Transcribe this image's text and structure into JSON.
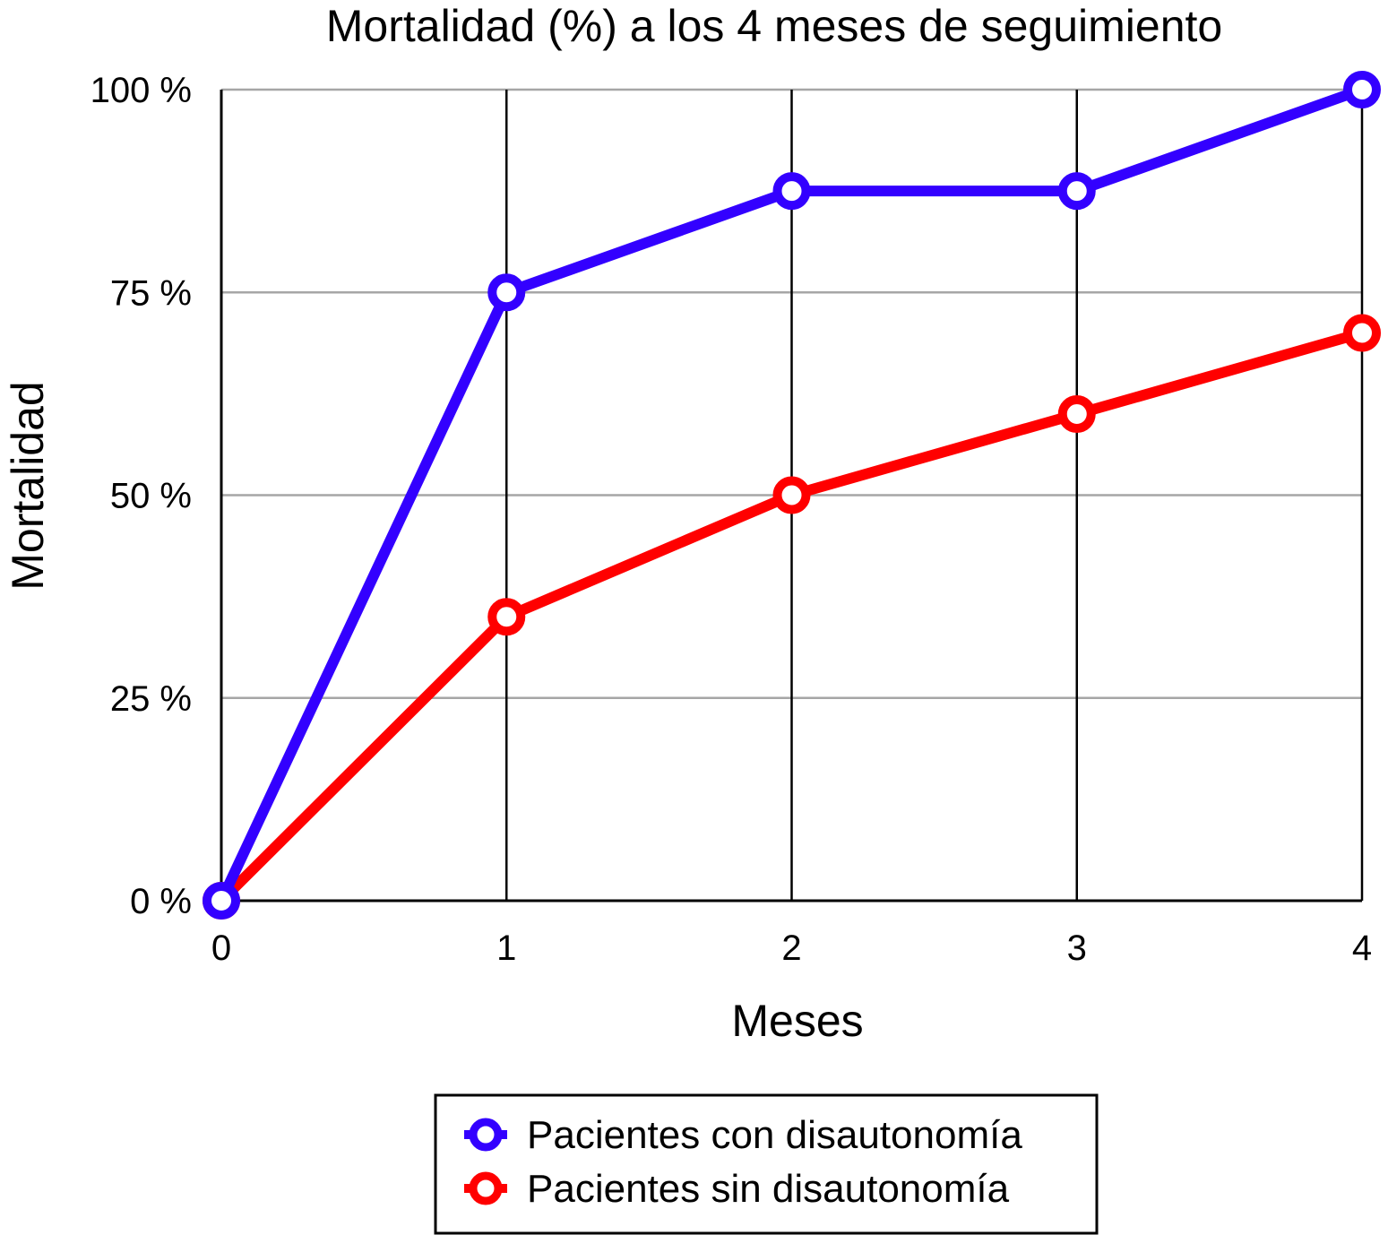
{
  "chart_data": {
    "type": "line",
    "title": "Mortalidad (%) a los 4 meses de seguimiento",
    "xlabel": "Meses",
    "ylabel": "Mortalidad",
    "x": [
      0,
      1,
      2,
      3,
      4
    ],
    "x_tick_labels": [
      "0",
      "1",
      "2",
      "3",
      "4"
    ],
    "y_ticks": [
      0,
      25,
      50,
      75,
      100
    ],
    "y_tick_labels": [
      "0 %",
      "25 %",
      "50 %",
      "75 %",
      "100 %"
    ],
    "xlim": [
      0,
      4
    ],
    "ylim": [
      0,
      100
    ],
    "grid": true,
    "legend_position": "bottom",
    "series": [
      {
        "name": "Pacientes con disautonomía",
        "color": "#3300ff",
        "values": [
          0,
          75,
          87.5,
          87.5,
          100
        ]
      },
      {
        "name": "Pacientes sin disautonomía",
        "color": "#ff0000",
        "values": [
          0,
          35,
          50,
          60,
          70
        ]
      }
    ]
  }
}
